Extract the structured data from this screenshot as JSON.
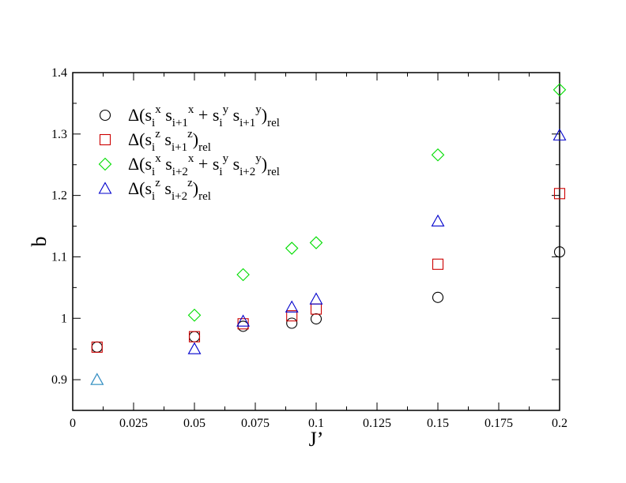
{
  "chart_data": {
    "type": "scatter",
    "xlabel": "J’",
    "ylabel": "b",
    "xlim": [
      0,
      0.2
    ],
    "ylim": [
      0.85,
      1.4
    ],
    "x_ticks": [
      {
        "value": 0,
        "label": "0"
      },
      {
        "value": 0.025,
        "label": "0.025"
      },
      {
        "value": 0.05,
        "label": "0.05"
      },
      {
        "value": 0.075,
        "label": "0.075"
      },
      {
        "value": 0.1,
        "label": "0.1"
      },
      {
        "value": 0.125,
        "label": "0.125"
      },
      {
        "value": 0.15,
        "label": "0.15"
      },
      {
        "value": 0.175,
        "label": "0.175"
      },
      {
        "value": 0.2,
        "label": "0.2"
      }
    ],
    "y_ticks": [
      {
        "value": 0.9,
        "label": "0.9"
      },
      {
        "value": 1.0,
        "label": "1"
      },
      {
        "value": 1.1,
        "label": "1.1"
      },
      {
        "value": 1.2,
        "label": "1.2"
      },
      {
        "value": 1.3,
        "label": "1.3"
      },
      {
        "value": 1.4,
        "label": "1.4"
      }
    ],
    "grid": false,
    "legend_position": "top-left",
    "series": [
      {
        "key": "xy_nn",
        "marker": "circle",
        "color": "#000000",
        "legend_prefix": "Δ(s",
        "legend_parts": [
          {
            "t": "Δ(s",
            "s": "n"
          },
          {
            "t": "i",
            "s": "sub"
          },
          {
            "t": "x",
            "s": "sup"
          },
          {
            "t": " s",
            "s": "n"
          },
          {
            "t": "i+1",
            "s": "sub"
          },
          {
            "t": "x",
            "s": "sup"
          },
          {
            "t": " + s",
            "s": "n"
          },
          {
            "t": "i",
            "s": "sub"
          },
          {
            "t": "y",
            "s": "sup"
          },
          {
            "t": " s",
            "s": "n"
          },
          {
            "t": "i+1",
            "s": "sub"
          },
          {
            "t": "y",
            "s": "sup"
          },
          {
            "t": ")",
            "s": "n"
          },
          {
            "t": "rel",
            "s": "sub"
          }
        ],
        "x": [
          0.01,
          0.05,
          0.07,
          0.09,
          0.1,
          0.15,
          0.2
        ],
        "y": [
          0.953,
          0.97,
          0.987,
          0.992,
          0.999,
          1.034,
          1.108
        ]
      },
      {
        "key": "zz_nn",
        "marker": "square",
        "color": "#cc0000",
        "legend_parts": [
          {
            "t": "Δ(s",
            "s": "n"
          },
          {
            "t": "i",
            "s": "sub"
          },
          {
            "t": "z",
            "s": "sup"
          },
          {
            "t": " s",
            "s": "n"
          },
          {
            "t": "i+1",
            "s": "sub"
          },
          {
            "t": "z",
            "s": "sup"
          },
          {
            "t": ")",
            "s": "n"
          },
          {
            "t": "rel",
            "s": "sub"
          }
        ],
        "x": [
          0.01,
          0.05,
          0.07,
          0.09,
          0.1,
          0.15,
          0.2
        ],
        "y": [
          0.953,
          0.97,
          0.991,
          1.004,
          1.015,
          1.088,
          1.203
        ]
      },
      {
        "key": "xy_nnn",
        "marker": "diamond",
        "color": "#00dd00",
        "legend_parts": [
          {
            "t": "Δ(s",
            "s": "n"
          },
          {
            "t": "i",
            "s": "sub"
          },
          {
            "t": "x",
            "s": "sup"
          },
          {
            "t": " s",
            "s": "n"
          },
          {
            "t": "i+2",
            "s": "sub"
          },
          {
            "t": "x",
            "s": "sup"
          },
          {
            "t": " + s",
            "s": "n"
          },
          {
            "t": "i",
            "s": "sub"
          },
          {
            "t": "y",
            "s": "sup"
          },
          {
            "t": " s",
            "s": "n"
          },
          {
            "t": "i+2",
            "s": "sub"
          },
          {
            "t": "y",
            "s": "sup"
          },
          {
            "t": ")",
            "s": "n"
          },
          {
            "t": "rel",
            "s": "sub"
          }
        ],
        "x": [
          0.05,
          0.07,
          0.09,
          0.1,
          0.15,
          0.2
        ],
        "y": [
          1.005,
          1.071,
          1.114,
          1.123,
          1.266,
          1.372
        ]
      },
      {
        "key": "zz_nnn",
        "marker": "triangle",
        "color": "#0000cc",
        "legend_parts": [
          {
            "t": "Δ(s",
            "s": "n"
          },
          {
            "t": "i",
            "s": "sub"
          },
          {
            "t": "z",
            "s": "sup"
          },
          {
            "t": " s",
            "s": "n"
          },
          {
            "t": "i+2",
            "s": "sub"
          },
          {
            "t": "z",
            "s": "sup"
          },
          {
            "t": ")",
            "s": "n"
          },
          {
            "t": "rel",
            "s": "sub"
          }
        ],
        "x": [
          0.01,
          0.05,
          0.07,
          0.09,
          0.1,
          0.15,
          0.2
        ],
        "y": [
          0.9,
          0.95,
          0.995,
          1.018,
          1.031,
          1.158,
          1.298
        ]
      }
    ],
    "overlap_marker": {
      "marker": "triangle",
      "color": "#3aa0c0",
      "x": 0.01,
      "y": 0.9
    }
  }
}
